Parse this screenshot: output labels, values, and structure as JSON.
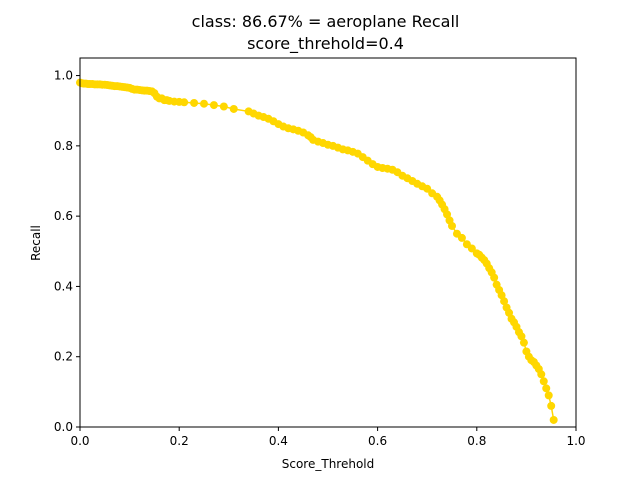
{
  "chart_data": {
    "type": "line",
    "title_lines": [
      "class: 86.67% = aeroplane Recall",
      "score_threhold=0.4"
    ],
    "xlabel": "Score_Threhold",
    "ylabel": "Recall",
    "xlim": [
      0.0,
      1.0
    ],
    "ylim": [
      0.0,
      1.05
    ],
    "xticks": [
      "0.0",
      "0.2",
      "0.4",
      "0.6",
      "0.8",
      "1.0"
    ],
    "yticks": [
      "0.0",
      "0.2",
      "0.4",
      "0.6",
      "0.8",
      "1.0"
    ],
    "grid": false,
    "color": "#ffd700",
    "series": [
      {
        "x": [
          0.0,
          0.004,
          0.008,
          0.012,
          0.016,
          0.02,
          0.025,
          0.03,
          0.035,
          0.04,
          0.045,
          0.05,
          0.055,
          0.06,
          0.065,
          0.07,
          0.075,
          0.08,
          0.085,
          0.09,
          0.095,
          0.1,
          0.105,
          0.11,
          0.115,
          0.12,
          0.125,
          0.13,
          0.135,
          0.14,
          0.145,
          0.15,
          0.155,
          0.16,
          0.165,
          0.17,
          0.175,
          0.18,
          0.19,
          0.2,
          0.21,
          0.23,
          0.25,
          0.27,
          0.29,
          0.31,
          0.34,
          0.35,
          0.36,
          0.37,
          0.38,
          0.39,
          0.4,
          0.41,
          0.42,
          0.43,
          0.44,
          0.45,
          0.46,
          0.465,
          0.47,
          0.48,
          0.49,
          0.5,
          0.51,
          0.52,
          0.53,
          0.54,
          0.55,
          0.56,
          0.57,
          0.58,
          0.59,
          0.6,
          0.61,
          0.62,
          0.63,
          0.64,
          0.65,
          0.66,
          0.67,
          0.68,
          0.69,
          0.7,
          0.71,
          0.72,
          0.725,
          0.73,
          0.735,
          0.74,
          0.745,
          0.75,
          0.76,
          0.77,
          0.78,
          0.79,
          0.8,
          0.805,
          0.81,
          0.815,
          0.82,
          0.825,
          0.83,
          0.835,
          0.84,
          0.845,
          0.85,
          0.855,
          0.86,
          0.865,
          0.87,
          0.875,
          0.88,
          0.885,
          0.89,
          0.895,
          0.9,
          0.905,
          0.91,
          0.915,
          0.92,
          0.925,
          0.93,
          0.935,
          0.94,
          0.945,
          0.95,
          0.955
        ],
        "y": [
          0.98,
          0.978,
          0.977,
          0.977,
          0.976,
          0.976,
          0.976,
          0.975,
          0.975,
          0.975,
          0.974,
          0.974,
          0.973,
          0.972,
          0.971,
          0.97,
          0.97,
          0.969,
          0.968,
          0.967,
          0.966,
          0.965,
          0.962,
          0.96,
          0.96,
          0.959,
          0.958,
          0.957,
          0.957,
          0.956,
          0.955,
          0.95,
          0.94,
          0.935,
          0.935,
          0.93,
          0.93,
          0.928,
          0.926,
          0.925,
          0.924,
          0.922,
          0.92,
          0.916,
          0.912,
          0.905,
          0.898,
          0.892,
          0.886,
          0.882,
          0.877,
          0.87,
          0.862,
          0.855,
          0.85,
          0.847,
          0.843,
          0.838,
          0.83,
          0.825,
          0.817,
          0.812,
          0.808,
          0.803,
          0.8,
          0.795,
          0.79,
          0.787,
          0.783,
          0.778,
          0.768,
          0.758,
          0.748,
          0.74,
          0.737,
          0.735,
          0.732,
          0.725,
          0.715,
          0.708,
          0.7,
          0.692,
          0.685,
          0.678,
          0.665,
          0.655,
          0.645,
          0.633,
          0.62,
          0.605,
          0.588,
          0.572,
          0.55,
          0.538,
          0.52,
          0.508,
          0.494,
          0.49,
          0.482,
          0.475,
          0.465,
          0.452,
          0.44,
          0.425,
          0.405,
          0.39,
          0.375,
          0.358,
          0.34,
          0.325,
          0.308,
          0.298,
          0.285,
          0.27,
          0.258,
          0.24,
          0.215,
          0.2,
          0.19,
          0.185,
          0.175,
          0.165,
          0.15,
          0.13,
          0.11,
          0.09,
          0.06,
          0.02
        ]
      }
    ]
  }
}
